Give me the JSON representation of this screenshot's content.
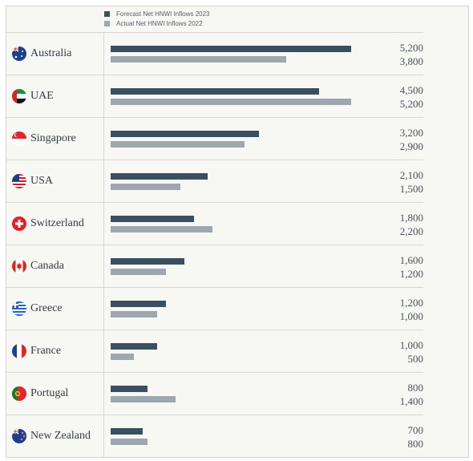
{
  "legend": {
    "forecast_label": "Forecast Net HNWI Inflows 2023",
    "actual_label": "Actual Net HNWI Inflows 2022"
  },
  "colors": {
    "forecast": "#3a5061",
    "actual": "#9ea7af",
    "divider": "#d8d8d4",
    "text": "#333b44"
  },
  "chart_data": {
    "type": "bar",
    "orientation": "horizontal",
    "categories": [
      "Australia",
      "UAE",
      "Singapore",
      "USA",
      "Switzerland",
      "Canada",
      "Greece",
      "France",
      "Portugal",
      "New Zealand"
    ],
    "series": [
      {
        "name": "Forecast Net HNWI Inflows 2023",
        "values": [
          5200,
          4500,
          3200,
          2100,
          1800,
          1600,
          1200,
          1000,
          800,
          700
        ]
      },
      {
        "name": "Actual Net HNWI Inflows 2022",
        "values": [
          3800,
          5200,
          2900,
          1500,
          2200,
          1200,
          1000,
          500,
          1400,
          800
        ]
      }
    ],
    "value_labels": [
      [
        "5,200",
        "3,800"
      ],
      [
        "4,500",
        "5,200"
      ],
      [
        "3,200",
        "2,900"
      ],
      [
        "2,100",
        "1,500"
      ],
      [
        "1,800",
        "2,200"
      ],
      [
        "1,600",
        "1,200"
      ],
      [
        "1,200",
        "1,000"
      ],
      [
        "1,000",
        "500"
      ],
      [
        "800",
        "1,400"
      ],
      [
        "700",
        "800"
      ]
    ],
    "xlim": [
      0,
      5200
    ],
    "legend_position": "top-left",
    "grid": false
  },
  "flags": [
    "australia-flag",
    "uae-flag",
    "singapore-flag",
    "usa-flag",
    "switzerland-flag",
    "canada-flag",
    "greece-flag",
    "france-flag",
    "portugal-flag",
    "new-zealand-flag"
  ]
}
